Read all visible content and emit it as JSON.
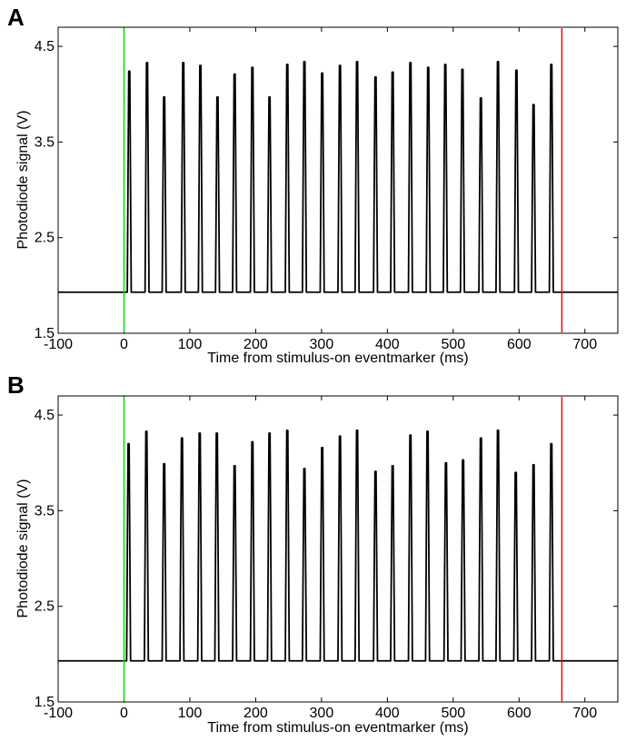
{
  "chart_data": [
    {
      "panel_label": "A",
      "type": "line",
      "xlabel": "Time from stimulus-on eventmarker  (ms)",
      "ylabel": "Photodiode signal  (V)",
      "xlim": [
        -100,
        750
      ],
      "ylim": [
        1.5,
        4.7
      ],
      "xticks": [
        -100,
        0,
        100,
        200,
        300,
        400,
        500,
        600,
        700
      ],
      "xtick_labels": [
        "-100",
        "0",
        "100",
        "200",
        "300",
        "400",
        "500",
        "600",
        "700"
      ],
      "yticks": [
        1.5,
        2.5,
        3.5,
        4.5
      ],
      "ytick_labels": [
        "1.5",
        "2.5",
        "3.5",
        "4.5"
      ],
      "grid": false,
      "baseline": 1.93,
      "series": [
        {
          "color": "#000000",
          "pulse_width_ms": 6,
          "peaks_x": [
            8,
            35,
            61,
            90,
            116,
            142,
            168,
            195,
            221,
            248,
            274,
            301,
            328,
            354,
            382,
            408,
            435,
            462,
            488,
            514,
            542,
            568,
            596,
            622,
            649
          ],
          "peaks_y": [
            4.24,
            4.33,
            3.97,
            4.33,
            4.3,
            3.97,
            4.21,
            4.28,
            3.97,
            4.31,
            4.34,
            4.22,
            4.3,
            4.34,
            4.18,
            4.23,
            4.33,
            4.28,
            4.31,
            4.26,
            3.96,
            4.34,
            4.25,
            3.89,
            4.31
          ]
        }
      ],
      "markers": [
        {
          "x": 0,
          "color": "#00dd00"
        },
        {
          "x": 665,
          "color": "#ff0000"
        }
      ]
    },
    {
      "panel_label": "B",
      "type": "line",
      "xlabel": "Time from stimulus-on eventmarker  (ms)",
      "ylabel": "Photodiode signal  (V)",
      "xlim": [
        -100,
        750
      ],
      "ylim": [
        1.5,
        4.7
      ],
      "xticks": [
        -100,
        0,
        100,
        200,
        300,
        400,
        500,
        600,
        700
      ],
      "xtick_labels": [
        "-100",
        "0",
        "100",
        "200",
        "300",
        "400",
        "500",
        "600",
        "700"
      ],
      "yticks": [
        1.5,
        2.5,
        3.5,
        4.5
      ],
      "ytick_labels": [
        "1.5",
        "2.5",
        "3.5",
        "4.5"
      ],
      "grid": false,
      "baseline": 1.93,
      "series": [
        {
          "color": "#000000",
          "pulse_width_ms": 6,
          "peaks_x": [
            7,
            34,
            61,
            88,
            115,
            141,
            168,
            195,
            221,
            248,
            274,
            301,
            328,
            354,
            382,
            408,
            435,
            461,
            489,
            515,
            542,
            568,
            595,
            622,
            649
          ],
          "peaks_y": [
            4.2,
            4.33,
            3.99,
            4.26,
            4.31,
            4.31,
            3.97,
            4.22,
            4.31,
            4.34,
            3.94,
            4.16,
            4.28,
            4.34,
            3.91,
            3.97,
            4.29,
            4.33,
            4.0,
            4.03,
            4.26,
            4.34,
            3.9,
            3.98,
            4.2
          ]
        }
      ],
      "markers": [
        {
          "x": 0,
          "color": "#00dd00"
        },
        {
          "x": 665,
          "color": "#ff0000"
        }
      ]
    }
  ]
}
